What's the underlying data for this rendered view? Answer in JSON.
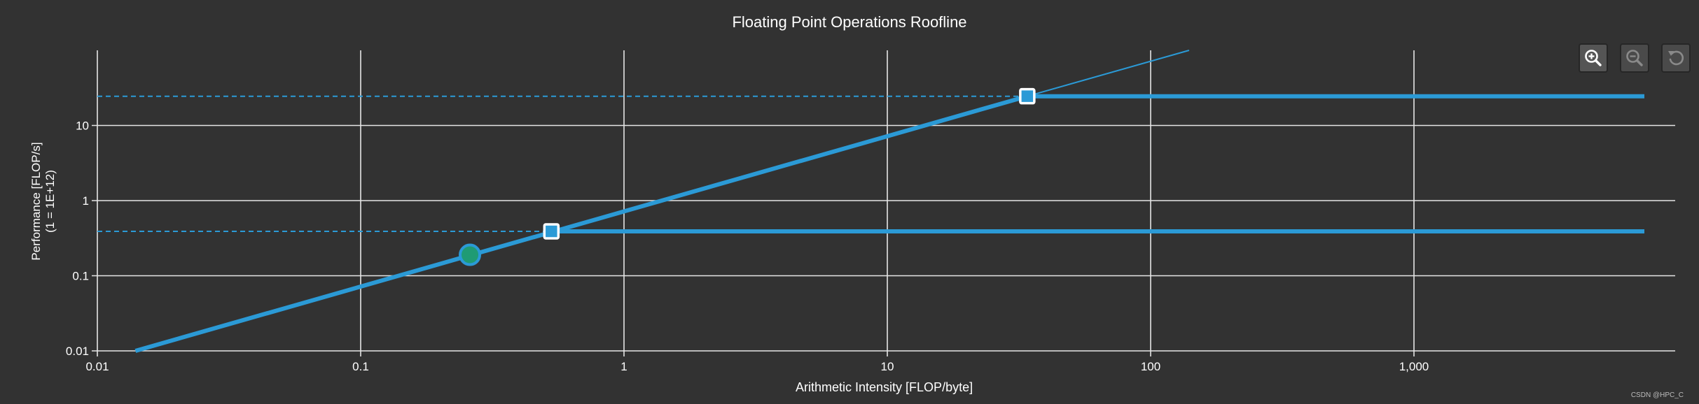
{
  "chart_data": {
    "type": "line",
    "title": "Floating Point Operations Roofline",
    "xlabel": "Arithmetic Intensity [FLOP/byte]",
    "ylabel": "Performance [FLOP/s]",
    "ylabel_unit": "(1 = 1E+12)",
    "x_scale": "log",
    "y_scale": "log",
    "xlim": [
      0.01,
      7500
    ],
    "ylim": [
      0.01,
      100
    ],
    "grid": true,
    "x_ticks": [
      {
        "value": 0.01,
        "label": "0.01"
      },
      {
        "value": 0.1,
        "label": "0.1"
      },
      {
        "value": 1,
        "label": "1"
      },
      {
        "value": 10,
        "label": "10"
      },
      {
        "value": 100,
        "label": "100"
      },
      {
        "value": 1000,
        "label": "1,000"
      }
    ],
    "y_ticks": [
      {
        "value": 0.01,
        "label": "0.01"
      },
      {
        "value": 0.1,
        "label": "0.1"
      },
      {
        "value": 1,
        "label": "1"
      },
      {
        "value": 10,
        "label": "10"
      }
    ],
    "series": [
      {
        "role": "bandwidth-roof",
        "x": [
          0.012,
          34
        ],
        "y": [
          0.0086,
          24.5
        ]
      },
      {
        "role": "bandwidth-extension",
        "x": [
          34,
          140
        ],
        "y": [
          24.5,
          100
        ]
      },
      {
        "role": "compute-roof-high",
        "x": [
          34,
          7500
        ],
        "y": [
          24.5,
          24.5
        ]
      },
      {
        "role": "compute-roof-low",
        "x": [
          0.53,
          7500
        ],
        "y": [
          0.39,
          0.39
        ]
      },
      {
        "role": "compute-roof-high-projection",
        "x": [
          0.01,
          34
        ],
        "y": [
          24.5,
          24.5
        ]
      },
      {
        "role": "compute-roof-low-projection",
        "x": [
          0.01,
          0.53
        ],
        "y": [
          0.39,
          0.39
        ]
      }
    ],
    "ridge_points": [
      {
        "x": 34,
        "y": 24.5
      },
      {
        "x": 0.53,
        "y": 0.39
      }
    ],
    "kernel_points": [
      {
        "x": 0.26,
        "y": 0.19
      }
    ],
    "colors": {
      "background": "#323232",
      "grid": "#e6e6e6",
      "roof": "#2b9ad6",
      "kernel": "#1f9b74",
      "text": "#ffffff"
    }
  },
  "toolbar": {
    "zoom_in_icon": "zoom-in-icon",
    "zoom_out_icon": "zoom-out-icon",
    "reset_icon": "reset-icon"
  },
  "watermark": "CSDN @HPC_C"
}
